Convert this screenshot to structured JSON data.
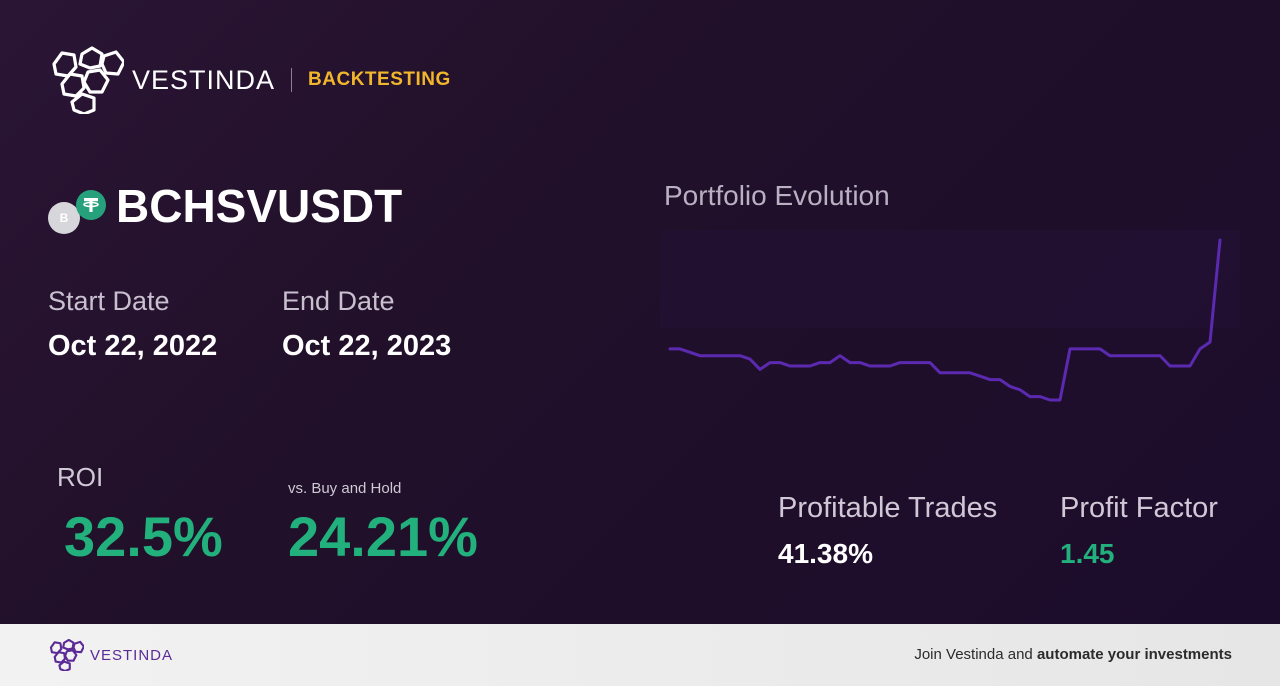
{
  "brand": {
    "name": "VESTINDA",
    "section": "BACKTESTING"
  },
  "pair": {
    "symbol": "BCHSVUSDT",
    "base_icon_letter": "B",
    "base_icon": "bchsv-coin-icon",
    "quote_icon": "tether-icon"
  },
  "dates": {
    "start_label": "Start Date",
    "start_value": "Oct 22, 2022",
    "end_label": "End Date",
    "end_value": "Oct 22, 2023"
  },
  "metrics": {
    "roi_label": "ROI",
    "roi_value": "32.5%",
    "vs_label": "vs. Buy and Hold",
    "vs_value": "24.21%",
    "profitable_label": "Profitable Trades",
    "profitable_value": "41.38%",
    "profit_factor_label": "Profit Factor",
    "profit_factor_value": "1.45"
  },
  "chart": {
    "title": "Portfolio Evolution"
  },
  "chart_data": {
    "type": "line",
    "series": [
      {
        "values": [
          100,
          100,
          99,
          98,
          98,
          98,
          98,
          98,
          97,
          94,
          96,
          96,
          95,
          95,
          95,
          96,
          96,
          98,
          96,
          96,
          95,
          95,
          95,
          96,
          96,
          96,
          96,
          93,
          93,
          93,
          93,
          92,
          91,
          91,
          89,
          88,
          86,
          86,
          85,
          85,
          100,
          100,
          100,
          100,
          98,
          98,
          98,
          98,
          98,
          98,
          95,
          95,
          95,
          100,
          102,
          132
        ]
      }
    ],
    "colors": {
      "line": "#5b2ab0",
      "positive": "#22b07d",
      "accent": "#f1b62b"
    }
  },
  "footer": {
    "brand": "VESTINDA",
    "cta_prefix": "Join Vestinda and ",
    "cta_bold": "automate your investments"
  }
}
